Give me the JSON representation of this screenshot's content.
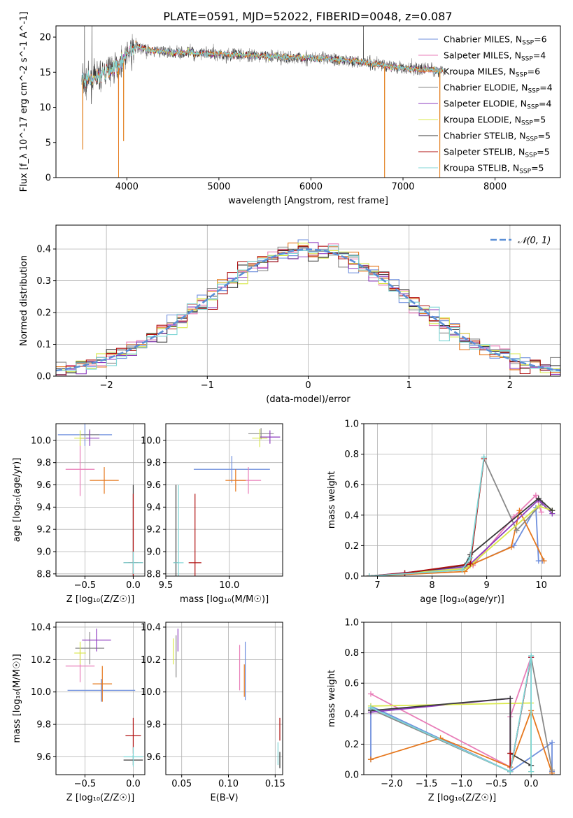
{
  "figure": {
    "title": "PLATE=0591, MJD=52022, FIBERID=0048, z=0.087"
  },
  "series_styles": [
    {
      "name": "Chabrier MILES, N_SSP=6",
      "label_main": "Chabrier MILES, N",
      "label_sub": "SSP",
      "label_tail": "=6",
      "color": "#6f8fdd"
    },
    {
      "name": "Salpeter MILES, N_SSP=4",
      "label_main": "Salpeter MILES, N",
      "label_sub": "SSP",
      "label_tail": "=4",
      "color": "#e87db8"
    },
    {
      "name": "Kroupa MILES, N_SSP=6",
      "label_main": "Kroupa MILES, N",
      "label_sub": "SSP",
      "label_tail": "=6",
      "color": "#e6781e"
    },
    {
      "name": "Chabrier ELODIE, N_SSP=4",
      "label_main": "Chabrier ELODIE, N",
      "label_sub": "SSP",
      "label_tail": "=4",
      "color": "#8a8a8a"
    },
    {
      "name": "Salpeter ELODIE, N_SSP=4",
      "label_main": "Salpeter ELODIE, N",
      "label_sub": "SSP",
      "label_tail": "=4",
      "color": "#8e3cbf"
    },
    {
      "name": "Kroupa ELODIE, N_SSP=5",
      "label_main": "Kroupa ELODIE, N",
      "label_sub": "SSP",
      "label_tail": "=5",
      "color": "#d9e84a"
    },
    {
      "name": "Chabrier STELIB, N_SSP=5",
      "label_main": "Chabrier STELIB, N",
      "label_sub": "SSP",
      "label_tail": "=5",
      "color": "#3a3a3a"
    },
    {
      "name": "Salpeter STELIB, N_SSP=5",
      "label_main": "Salpeter STELIB, N",
      "label_sub": "SSP",
      "label_tail": "=5",
      "color": "#b01010"
    },
    {
      "name": "Kroupa STELIB, N_SSP=5",
      "label_main": "Kroupa STELIB, N",
      "label_sub": "SSP",
      "label_tail": "=5",
      "color": "#7fd6d6"
    }
  ],
  "chart_data": [
    {
      "id": "spectrum",
      "type": "line",
      "xlabel": "wavelength [Angstrom, rest frame]",
      "ylabel": "Flux [f_λ 10^-17 erg cm^-2 s^-1 A^-1]",
      "xlim": [
        3230,
        8710
      ],
      "ylim": [
        0,
        21.6
      ],
      "xticks": [
        4000,
        5000,
        6000,
        7000,
        8000
      ],
      "yticks": [
        0,
        5,
        10,
        15,
        20
      ],
      "legend": "top-right",
      "spectrum_wavelength_range": [
        3510,
        7440
      ],
      "continuum_profile": [
        [
          3510,
          13.6
        ],
        [
          3600,
          13.8
        ],
        [
          3700,
          14.5
        ],
        [
          3800,
          15.2
        ],
        [
          3900,
          16.0
        ],
        [
          4000,
          17.5
        ],
        [
          4100,
          18.6
        ],
        [
          4300,
          18.0
        ],
        [
          4600,
          17.8
        ],
        [
          5000,
          17.6
        ],
        [
          5500,
          17.3
        ],
        [
          6000,
          17.0
        ],
        [
          6500,
          16.6
        ],
        [
          7000,
          15.6
        ],
        [
          7440,
          15.2
        ]
      ],
      "absorption_spikes": [
        [
          3520,
          4.0
        ],
        [
          3910,
          0.0
        ],
        [
          3965,
          5.2
        ],
        [
          6800,
          0.0
        ],
        [
          7400,
          0.0
        ]
      ],
      "emission_spikes": [
        [
          3540,
          21.6
        ],
        [
          3620,
          21.6
        ],
        [
          6570,
          21.6
        ]
      ]
    },
    {
      "id": "residual_histogram",
      "type": "histogram",
      "xlabel": "(data-model)/error",
      "ylabel": "Normed distribution",
      "xlim": [
        -2.5,
        2.5
      ],
      "ylim": [
        0,
        0.475
      ],
      "xticks": [
        -2,
        -1,
        0,
        1,
        2
      ],
      "yticks": [
        0.0,
        0.1,
        0.2,
        0.3,
        0.4
      ],
      "legend": "top-right",
      "reference_label": "𝒩(0, 1)",
      "bin_width": 0.1,
      "reference_mean": 0,
      "reference_sigma": 1
    },
    {
      "id": "age_vs_Z",
      "type": "errorbar",
      "xlabel": "Z [log₁₀(Z/Z☉)]",
      "ylabel": "age  [log₁₀(age/yr)]",
      "xlim": [
        -0.8,
        0.12
      ],
      "ylim": [
        8.78,
        10.15
      ],
      "xticks": [
        -0.5,
        0.0
      ],
      "yticks": [
        8.8,
        9.0,
        9.2,
        9.4,
        9.6,
        9.8,
        10.0
      ],
      "points": [
        {
          "series": 0,
          "x": -0.5,
          "xerr": 0.28,
          "y": 10.05,
          "yerr": 0.1
        },
        {
          "series": 1,
          "x": -0.55,
          "xerr": 0.15,
          "y": 9.74,
          "yerr": 0.24
        },
        {
          "series": 2,
          "x": -0.3,
          "xerr": 0.15,
          "y": 9.64,
          "yerr": 0.12
        },
        {
          "series": 3,
          "x": -0.45,
          "xerr": 0.1,
          "y": 10.05,
          "yerr": 0.05
        },
        {
          "series": 4,
          "x": -0.45,
          "xerr": 0.1,
          "y": 10.02,
          "yerr": 0.07
        },
        {
          "series": 5,
          "x": -0.55,
          "xerr": 0.06,
          "y": 10.02,
          "yerr": 0.07
        },
        {
          "series": 6,
          "x": 0.0,
          "xerr": 0.1,
          "y": 8.9,
          "yerr": 0.7
        },
        {
          "series": 7,
          "x": 0.0,
          "xerr": 0.05,
          "y": 8.9,
          "yerr": 0.62
        },
        {
          "series": 8,
          "x": 0.0,
          "xerr": 0.1,
          "y": 8.9,
          "yerr": 0.1
        }
      ]
    },
    {
      "id": "age_vs_mass",
      "type": "errorbar",
      "xlabel": "mass [log₁₀(M/M☉)]",
      "ylabel": "",
      "xlim": [
        9.5,
        10.42
      ],
      "ylim": [
        8.78,
        10.15
      ],
      "xticks": [
        9.5,
        10.0
      ],
      "yticks": [
        8.8,
        9.0,
        9.2,
        9.4,
        9.6,
        9.8,
        10.0
      ],
      "points": [
        {
          "series": 0,
          "x": 10.02,
          "xerr": 0.3,
          "y": 9.74,
          "yerr": 0.12
        },
        {
          "series": 1,
          "x": 10.15,
          "xerr": 0.1,
          "y": 9.64,
          "yerr": 0.12
        },
        {
          "series": 2,
          "x": 10.05,
          "xerr": 0.08,
          "y": 9.64,
          "yerr": 0.1
        },
        {
          "series": 3,
          "x": 10.25,
          "xerr": 0.1,
          "y": 10.06,
          "yerr": 0.05
        },
        {
          "series": 4,
          "x": 10.32,
          "xerr": 0.08,
          "y": 10.03,
          "yerr": 0.06
        },
        {
          "series": 5,
          "x": 10.24,
          "xerr": 0.06,
          "y": 10.02,
          "yerr": 0.08
        },
        {
          "series": 6,
          "x": 9.58,
          "xerr": 0.02,
          "y": 8.9,
          "yerr": 0.7
        },
        {
          "series": 7,
          "x": 9.73,
          "xerr": 0.05,
          "y": 8.9,
          "yerr": 0.62
        },
        {
          "series": 8,
          "x": 9.6,
          "xerr": 0.04,
          "y": 8.9,
          "yerr": 0.7
        }
      ]
    },
    {
      "id": "mass_weight_vs_age",
      "type": "line",
      "xlabel": "age  [log₁₀(age/yr)]",
      "ylabel": "mass weight",
      "xlim": [
        6.75,
        10.35
      ],
      "ylim": [
        0,
        1.0
      ],
      "xticks": [
        7,
        8,
        9,
        10
      ],
      "yticks": [
        0.0,
        0.2,
        0.4,
        0.6,
        0.8,
        1.0
      ],
      "series": [
        {
          "series": 0,
          "x": [
            6.85,
            8.6,
            8.75,
            9.5,
            9.9,
            9.95,
            10.02
          ],
          "y": [
            0.0,
            0.05,
            0.08,
            0.2,
            0.45,
            0.1,
            0.1
          ]
        },
        {
          "series": 1,
          "x": [
            6.85,
            8.6,
            8.75,
            9.5,
            9.9,
            10.0
          ],
          "y": [
            0.0,
            0.05,
            0.07,
            0.39,
            0.53,
            0.42
          ]
        },
        {
          "series": 2,
          "x": [
            6.85,
            8.6,
            8.75,
            9.45,
            9.6,
            10.05
          ],
          "y": [
            0.0,
            0.03,
            0.08,
            0.19,
            0.43,
            0.1
          ]
        },
        {
          "series": 3,
          "x": [
            6.85,
            8.55,
            8.7,
            8.95,
            9.55,
            10.02
          ],
          "y": [
            0.0,
            0.04,
            0.09,
            0.77,
            0.3,
            0.48
          ]
        },
        {
          "series": 4,
          "x": [
            6.85,
            8.6,
            8.7,
            9.95,
            10.2
          ],
          "y": [
            0.0,
            0.06,
            0.08,
            0.5,
            0.41
          ]
        },
        {
          "series": 5,
          "x": [
            6.85,
            8.6,
            8.7,
            9.95,
            10.2
          ],
          "y": [
            0.0,
            0.05,
            0.07,
            0.46,
            0.43
          ]
        },
        {
          "series": 6,
          "x": [
            6.85,
            7.5,
            8.6,
            8.7,
            9.95,
            10.2
          ],
          "y": [
            0.0,
            0.02,
            0.07,
            0.14,
            0.51,
            0.43
          ]
        },
        {
          "series": 7,
          "x": [
            6.85,
            7.5,
            8.7,
            8.95
          ],
          "y": [
            0.0,
            0.02,
            0.08,
            0.77
          ]
        },
        {
          "series": 8,
          "x": [
            6.85,
            8.55,
            8.7,
            8.95
          ],
          "y": [
            0.0,
            0.04,
            0.12,
            0.78
          ]
        }
      ]
    },
    {
      "id": "mass_vs_Z",
      "type": "errorbar",
      "xlabel": "Z [log₁₀(Z/Z☉)]",
      "ylabel": "mass [log₁₀(M/M☉)]",
      "xlim": [
        -0.8,
        0.12
      ],
      "ylim": [
        9.49,
        10.43
      ],
      "xticks": [
        -0.5,
        0.0
      ],
      "yticks": [
        9.6,
        9.8,
        10.0,
        10.2,
        10.4
      ],
      "points": [
        {
          "series": 0,
          "x": -0.33,
          "xerr": 0.35,
          "y": 10.01,
          "yerr": 0.07
        },
        {
          "series": 1,
          "x": -0.55,
          "xerr": 0.15,
          "y": 10.16,
          "yerr": 0.1
        },
        {
          "series": 2,
          "x": -0.32,
          "xerr": 0.1,
          "y": 10.05,
          "yerr": 0.11
        },
        {
          "series": 3,
          "x": -0.45,
          "xerr": 0.15,
          "y": 10.27,
          "yerr": 0.1
        },
        {
          "series": 4,
          "x": -0.38,
          "xerr": 0.15,
          "y": 10.32,
          "yerr": 0.07
        },
        {
          "series": 5,
          "x": -0.55,
          "xerr": 0.06,
          "y": 10.24,
          "yerr": 0.07
        },
        {
          "series": 6,
          "x": 0.0,
          "xerr": 0.1,
          "y": 9.58,
          "yerr": 0.03
        },
        {
          "series": 7,
          "x": 0.0,
          "xerr": 0.08,
          "y": 9.73,
          "yerr": 0.11
        },
        {
          "series": 8,
          "x": 0.0,
          "xerr": 0.1,
          "y": 9.6,
          "yerr": 0.06
        }
      ]
    },
    {
      "id": "mass_vs_ebv",
      "type": "errorbar",
      "xlabel": "E(B-V)",
      "ylabel": "",
      "xlim": [
        0.033,
        0.158
      ],
      "ylim": [
        9.49,
        10.43
      ],
      "xticks": [
        0.05,
        0.1,
        0.15
      ],
      "yticks": [
        9.6,
        9.8,
        10.0,
        10.2,
        10.4
      ],
      "points": [
        {
          "series": 0,
          "x": 0.118,
          "xerr": 0,
          "y": 10.13,
          "yerr": 0.18
        },
        {
          "series": 1,
          "x": 0.112,
          "xerr": 0,
          "y": 10.15,
          "yerr": 0.14
        },
        {
          "series": 2,
          "x": 0.117,
          "xerr": 0,
          "y": 10.07,
          "yerr": 0.1
        },
        {
          "series": 3,
          "x": 0.044,
          "xerr": 0,
          "y": 10.22,
          "yerr": 0.13
        },
        {
          "series": 4,
          "x": 0.046,
          "xerr": 0,
          "y": 10.32,
          "yerr": 0.07
        },
        {
          "series": 5,
          "x": 0.041,
          "xerr": 0,
          "y": 10.25,
          "yerr": 0.08
        },
        {
          "series": 6,
          "x": 0.155,
          "xerr": 0,
          "y": 9.58,
          "yerr": 0.05
        },
        {
          "series": 7,
          "x": 0.155,
          "xerr": 0,
          "y": 9.77,
          "yerr": 0.07
        },
        {
          "series": 8,
          "x": 0.153,
          "xerr": 0,
          "y": 9.62,
          "yerr": 0.07
        }
      ]
    },
    {
      "id": "mass_weight_vs_Z",
      "type": "line",
      "xlabel": "Z [log₁₀(Z/Z☉)]",
      "ylabel": "mass weight",
      "xlim": [
        -2.4,
        0.42
      ],
      "ylim": [
        0,
        1.0
      ],
      "xticks": [
        -2.0,
        -1.5,
        -1.0,
        -0.5,
        0.0
      ],
      "yticks": [
        0.0,
        0.2,
        0.4,
        0.6,
        0.8,
        1.0
      ],
      "series": [
        {
          "series": 0,
          "x": [
            -2.3,
            -2.3,
            -0.3,
            0.3,
            0.3
          ],
          "y": [
            0.1,
            0.45,
            0.02,
            0.21,
            0.02
          ]
        },
        {
          "series": 1,
          "x": [
            -2.3,
            -0.3,
            -0.3,
            0.0,
            0.0
          ],
          "y": [
            0.53,
            0.05,
            0.38,
            0.77,
            0.02
          ]
        },
        {
          "series": 2,
          "x": [
            -2.3,
            -1.3,
            -0.3,
            0.0,
            0.3
          ],
          "y": [
            0.1,
            0.24,
            0.05,
            0.42,
            0.01
          ]
        },
        {
          "series": 3,
          "x": [
            -2.3,
            -0.3,
            0.0,
            0.3
          ],
          "y": [
            0.43,
            0.02,
            0.77,
            0.03
          ]
        },
        {
          "series": 4,
          "x": [
            -2.3,
            -0.3,
            -0.3,
            0.0
          ],
          "y": [
            0.41,
            0.5,
            0.02,
            0.77
          ]
        },
        {
          "series": 5,
          "x": [
            -2.3,
            0.0,
            0.0
          ],
          "y": [
            0.45,
            0.47,
            0.02
          ]
        },
        {
          "series": 6,
          "x": [
            -2.3,
            -0.3,
            -0.3,
            0.0
          ],
          "y": [
            0.42,
            0.5,
            0.14,
            0.06
          ]
        },
        {
          "series": 7,
          "x": [
            -0.3,
            -0.3,
            0.0
          ],
          "y": [
            0.14,
            0.02,
            0.77
          ]
        },
        {
          "series": 8,
          "x": [
            -2.3,
            -0.3,
            0.0,
            0.0
          ],
          "y": [
            0.44,
            0.02,
            0.78,
            0.02
          ]
        }
      ]
    }
  ]
}
